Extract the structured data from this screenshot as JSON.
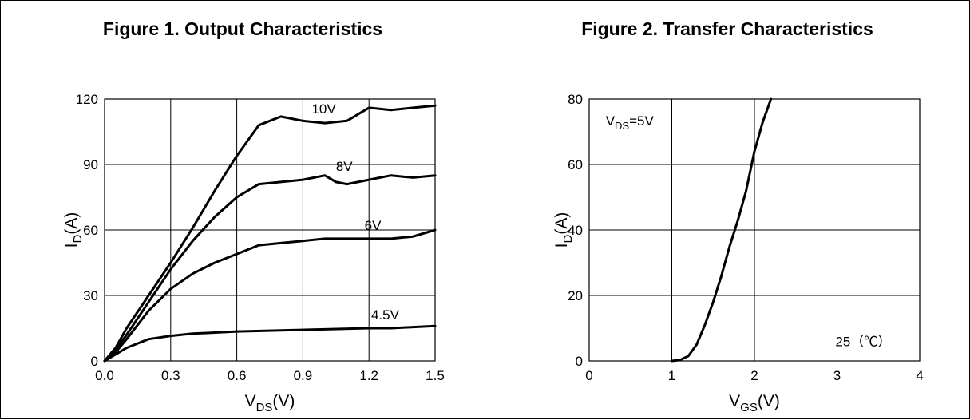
{
  "figures": {
    "fig1_title": "Figure 1. Output Characteristics",
    "fig2_title": "Figure 2. Transfer Characteristics"
  },
  "chart_data": [
    {
      "type": "line",
      "title": "Figure 1. Output Characteristics",
      "xlabel": {
        "main": "V",
        "sub": "DS",
        "unit": "(V)"
      },
      "ylabel": {
        "main": "I",
        "sub": "D",
        "unit": "(A)"
      },
      "xlim": [
        0,
        1.5
      ],
      "ylim": [
        0,
        120
      ],
      "xticks": [
        "0.0",
        "0.3",
        "0.6",
        "0.9",
        "1.2",
        "1.5"
      ],
      "yticks": [
        "0",
        "30",
        "60",
        "90",
        "120"
      ],
      "grid": true,
      "series": [
        {
          "name": "10V",
          "x": [
            0,
            0.05,
            0.1,
            0.2,
            0.3,
            0.4,
            0.5,
            0.6,
            0.7,
            0.8,
            0.9,
            1.0,
            1.1,
            1.2,
            1.3,
            1.4,
            1.5
          ],
          "y": [
            0,
            6,
            15,
            30,
            45,
            61,
            78,
            94,
            108,
            112,
            110,
            109,
            110,
            116,
            115,
            116,
            117
          ]
        },
        {
          "name": "8V",
          "x": [
            0,
            0.05,
            0.1,
            0.2,
            0.3,
            0.4,
            0.5,
            0.6,
            0.7,
            0.8,
            0.9,
            1.0,
            1.05,
            1.1,
            1.2,
            1.3,
            1.4,
            1.5
          ],
          "y": [
            0,
            5,
            12,
            27,
            42,
            55,
            66,
            75,
            81,
            82,
            83,
            85,
            82,
            81,
            83,
            85,
            84,
            85
          ]
        },
        {
          "name": "6V",
          "x": [
            0,
            0.05,
            0.1,
            0.2,
            0.3,
            0.4,
            0.5,
            0.6,
            0.7,
            0.8,
            0.9,
            1.0,
            1.1,
            1.2,
            1.3,
            1.4,
            1.5
          ],
          "y": [
            0,
            4,
            10,
            23,
            33,
            40,
            45,
            49,
            53,
            54,
            55,
            56,
            56,
            56,
            56,
            57,
            60
          ]
        },
        {
          "name": "4.5V",
          "x": [
            0,
            0.05,
            0.1,
            0.15,
            0.2,
            0.3,
            0.4,
            0.5,
            0.6,
            0.8,
            1.0,
            1.2,
            1.3,
            1.4,
            1.5
          ],
          "y": [
            0,
            3,
            6,
            8,
            10,
            11.5,
            12.5,
            13,
            13.5,
            14,
            14.5,
            15,
            15,
            15.5,
            16
          ]
        }
      ]
    },
    {
      "type": "line",
      "title": "Figure 2. Transfer Characteristics",
      "xlabel": {
        "main": "V",
        "sub": "GS",
        "unit": "(V)"
      },
      "ylabel": {
        "main": "I",
        "sub": "D",
        "unit": "(A)"
      },
      "xlim": [
        0,
        4
      ],
      "ylim": [
        0,
        80
      ],
      "xticks": [
        "0",
        "1",
        "2",
        "3",
        "4"
      ],
      "yticks": [
        "0",
        "20",
        "40",
        "60",
        "80"
      ],
      "grid": true,
      "annotations": {
        "vds_main": "V",
        "vds_sub": "DS",
        "vds_val": "=5V",
        "temp": "25（℃）"
      },
      "series": [
        {
          "name": "",
          "x": [
            1.0,
            1.1,
            1.2,
            1.3,
            1.4,
            1.5,
            1.6,
            1.7,
            1.8,
            1.9,
            2.0,
            2.1,
            2.2
          ],
          "y": [
            0,
            0.3,
            1.5,
            5,
            11,
            18,
            26,
            35,
            43,
            52,
            64,
            73,
            80
          ]
        }
      ]
    }
  ]
}
